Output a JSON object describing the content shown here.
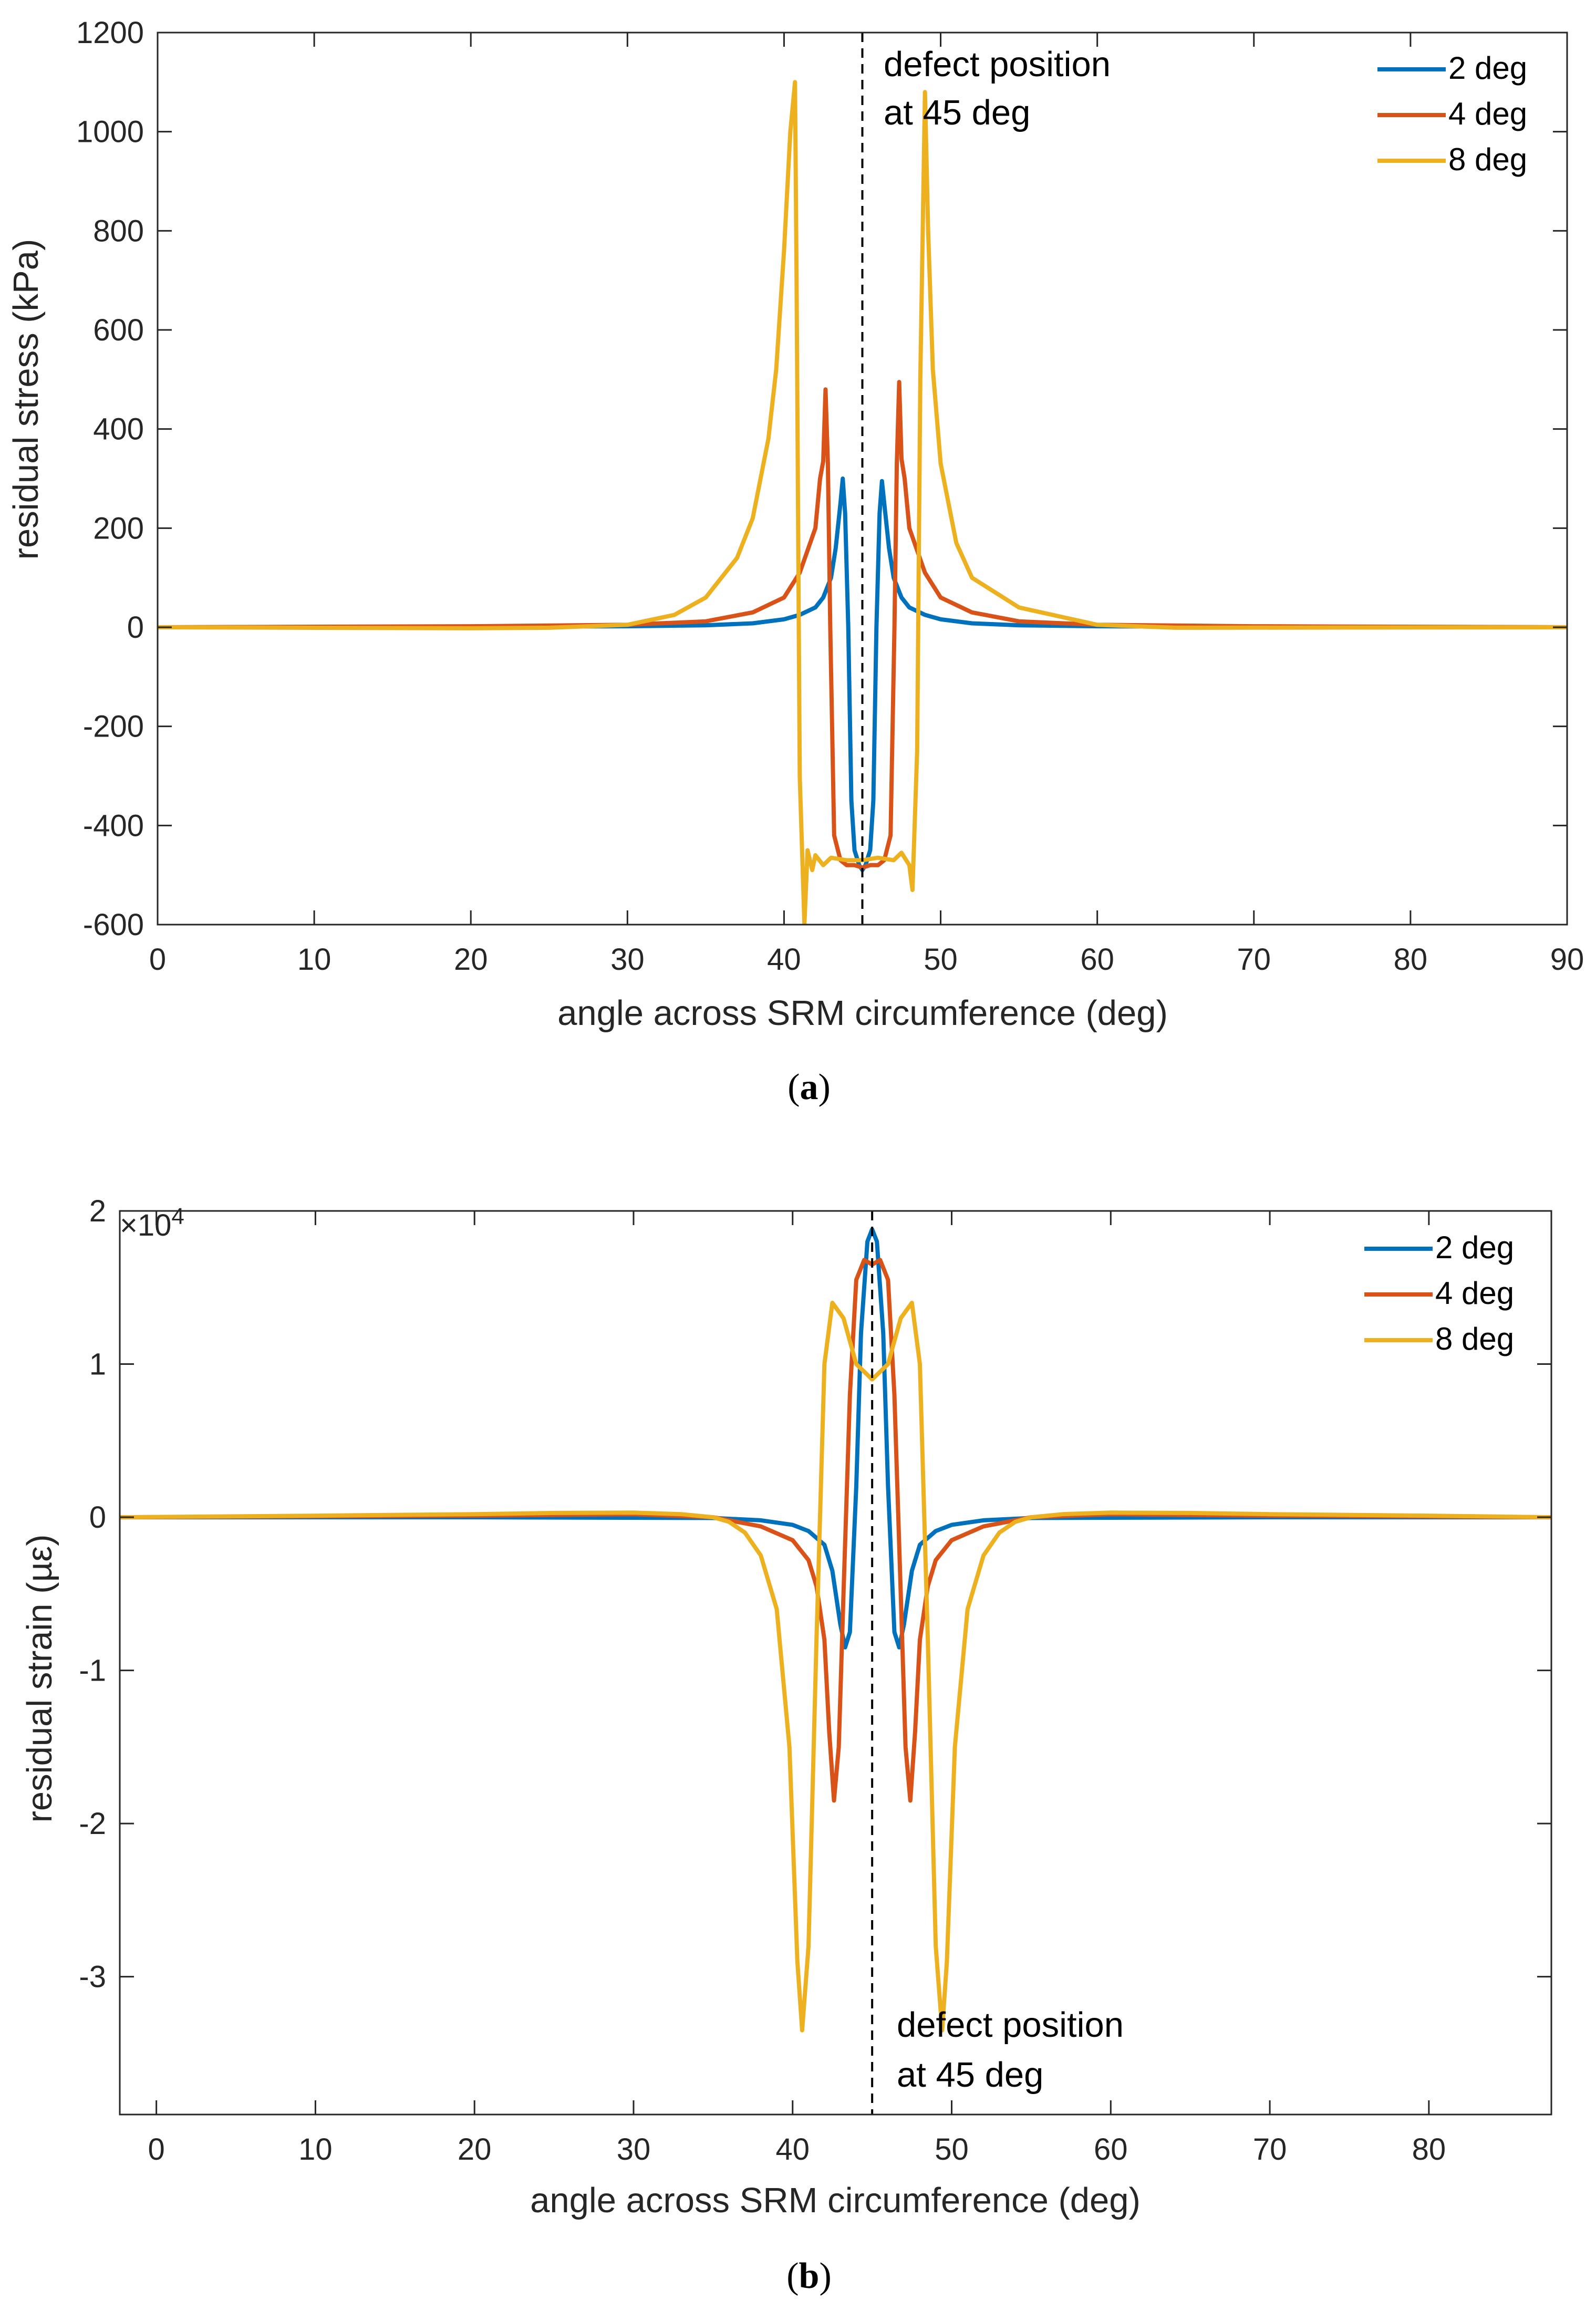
{
  "chart_data": [
    {
      "id": "a",
      "type": "line",
      "caption_letter": "a",
      "caption_open": "(",
      "caption_close": ")",
      "xlabel": "angle across SRM circumference (deg)",
      "ylabel": "residual stress (kPa)",
      "xlim": [
        0,
        90
      ],
      "ylim": [
        -600,
        1200
      ],
      "xticks": [
        0,
        10,
        20,
        30,
        40,
        50,
        60,
        70,
        80,
        90
      ],
      "yticks": [
        -600,
        -400,
        -200,
        0,
        200,
        400,
        600,
        800,
        1000,
        1200
      ],
      "xtick_labels": [
        "0",
        "10",
        "20",
        "30",
        "40",
        "50",
        "60",
        "70",
        "80",
        "90"
      ],
      "ytick_labels": [
        "-600",
        "-400",
        "-200",
        "0",
        "200",
        "400",
        "600",
        "800",
        "1000",
        "1200"
      ],
      "annotation": {
        "line1": "defect position",
        "line2": "at 45 deg",
        "x": 45
      },
      "legend_position": "top-right",
      "series": [
        {
          "name": "2 deg",
          "color": "#0072BD",
          "x": [
            0,
            20,
            30,
            35,
            38,
            40,
            41,
            42,
            42.5,
            43,
            43.3,
            43.6,
            43.75,
            43.9,
            44.1,
            44.3,
            44.5,
            44.8,
            45,
            45.2,
            45.5,
            45.7,
            45.9,
            46.1,
            46.25,
            46.4,
            46.7,
            47,
            47.5,
            48,
            49,
            50,
            52,
            55,
            60,
            70,
            90
          ],
          "y": [
            0,
            1,
            2,
            4,
            8,
            16,
            25,
            40,
            60,
            100,
            160,
            250,
            300,
            230,
            0,
            -350,
            -450,
            -480,
            -490,
            -480,
            -450,
            -350,
            0,
            230,
            295,
            250,
            160,
            100,
            60,
            40,
            25,
            16,
            8,
            4,
            2,
            1,
            0
          ]
        },
        {
          "name": "4 deg",
          "color": "#D95319",
          "x": [
            0,
            20,
            30,
            35,
            38,
            40,
            41,
            42,
            42.3,
            42.5,
            42.65,
            42.8,
            42.95,
            43.2,
            43.6,
            44,
            44.5,
            45,
            45.5,
            46,
            46.4,
            46.8,
            47.05,
            47.2,
            47.35,
            47.5,
            47.7,
            48,
            49,
            50,
            52,
            55,
            60,
            70,
            90
          ],
          "y": [
            0,
            2,
            5,
            12,
            30,
            60,
            110,
            200,
            300,
            335,
            480,
            330,
            0,
            -420,
            -470,
            -480,
            -480,
            -485,
            -480,
            -480,
            -470,
            -420,
            0,
            330,
            495,
            340,
            300,
            200,
            110,
            60,
            30,
            12,
            5,
            2,
            0
          ]
        },
        {
          "name": "8 deg",
          "color": "#EDB120",
          "x": [
            0,
            20,
            25,
            30,
            33,
            35,
            37,
            38,
            39,
            39.5,
            40,
            40.4,
            40.7,
            40.8,
            41,
            41.3,
            41.5,
            41.8,
            42,
            42.5,
            43,
            44,
            45,
            46,
            47,
            47.5,
            48,
            48.2,
            48.5,
            48.7,
            49,
            49.2,
            49.5,
            50,
            51,
            52,
            55,
            60,
            65,
            90
          ],
          "y": [
            0,
            -2,
            -1,
            5,
            25,
            60,
            140,
            220,
            380,
            520,
            760,
            1000,
            1100,
            700,
            -300,
            -600,
            -450,
            -490,
            -460,
            -480,
            -465,
            -470,
            -470,
            -465,
            -470,
            -455,
            -480,
            -530,
            -250,
            500,
            1080,
            800,
            520,
            330,
            170,
            100,
            40,
            5,
            -1,
            0
          ]
        }
      ]
    },
    {
      "id": "b",
      "type": "line",
      "caption_letter": "b",
      "caption_open": "(",
      "caption_close": ")",
      "xlabel": "angle across SRM circumference (deg)",
      "ylabel": "residual strain (µε)",
      "exponent_prefix": "×10",
      "exponent_power": "4",
      "xlim": [
        -2.3,
        87.7
      ],
      "ylim": [
        -39000,
        20000
      ],
      "xticks": [
        0,
        10,
        20,
        30,
        40,
        50,
        60,
        70,
        80
      ],
      "yticks": [
        -30000,
        -20000,
        -10000,
        0,
        10000,
        20000
      ],
      "xtick_labels": [
        "0",
        "10",
        "20",
        "30",
        "40",
        "50",
        "60",
        "70",
        "80"
      ],
      "ytick_labels": [
        "-3",
        "-2",
        "-1",
        "0",
        "1",
        "2"
      ],
      "annotation": {
        "line1": "defect position",
        "line2": "at 45 deg",
        "x": 45
      },
      "legend_position": "top-right",
      "series": [
        {
          "name": "2 deg",
          "color": "#0072BD",
          "x": [
            -2.3,
            20,
            35,
            38,
            40,
            41,
            42,
            42.5,
            43,
            43.3,
            43.6,
            44,
            44.3,
            44.7,
            45,
            45.3,
            45.7,
            46,
            46.4,
            46.7,
            47,
            47.5,
            48,
            49,
            50,
            52,
            55,
            70,
            87.7
          ],
          "y": [
            0,
            0,
            -50,
            -200,
            -500,
            -900,
            -1800,
            -3500,
            -7000,
            -8500,
            -7500,
            2000,
            12000,
            18000,
            18800,
            18000,
            12000,
            2000,
            -7500,
            -8500,
            -7000,
            -3500,
            -1800,
            -900,
            -500,
            -200,
            -50,
            0,
            0
          ]
        },
        {
          "name": "4 deg",
          "color": "#D95319",
          "x": [
            -2.3,
            20,
            30,
            35,
            38,
            40,
            41,
            41.5,
            42,
            42.3,
            42.6,
            42.9,
            43.2,
            43.6,
            44,
            44.5,
            45,
            45.5,
            46,
            46.4,
            46.8,
            47.1,
            47.4,
            47.7,
            48,
            48.5,
            49,
            50,
            52,
            55,
            60,
            70,
            87.7
          ],
          "y": [
            0,
            100,
            200,
            0,
            -600,
            -1500,
            -2800,
            -4500,
            -8000,
            -14000,
            -18500,
            -15000,
            -5000,
            8000,
            15500,
            16800,
            16500,
            16800,
            15500,
            8000,
            -5000,
            -15000,
            -18500,
            -14000,
            -8000,
            -4500,
            -2800,
            -1500,
            -600,
            0,
            200,
            100,
            0
          ]
        },
        {
          "name": "8 deg",
          "color": "#EDB120",
          "x": [
            -2.3,
            10,
            20,
            25,
            30,
            33,
            35,
            36,
            37,
            38,
            39,
            39.8,
            40.3,
            40.6,
            41,
            41.5,
            42,
            42.5,
            43.2,
            44,
            45,
            46,
            46.8,
            47.5,
            48,
            48.5,
            49,
            49.4,
            49.7,
            50.2,
            51,
            52,
            53,
            54,
            55,
            57,
            60,
            65,
            70,
            80,
            87.7
          ],
          "y": [
            0,
            100,
            200,
            280,
            300,
            200,
            0,
            -300,
            -1000,
            -2500,
            -6000,
            -15000,
            -29000,
            -33500,
            -28000,
            -8000,
            10000,
            14000,
            13000,
            10000,
            9000,
            10000,
            13000,
            14000,
            10000,
            -8000,
            -28000,
            -33500,
            -29000,
            -15000,
            -6000,
            -2500,
            -1000,
            -300,
            0,
            200,
            300,
            280,
            200,
            100,
            0
          ]
        }
      ]
    }
  ]
}
